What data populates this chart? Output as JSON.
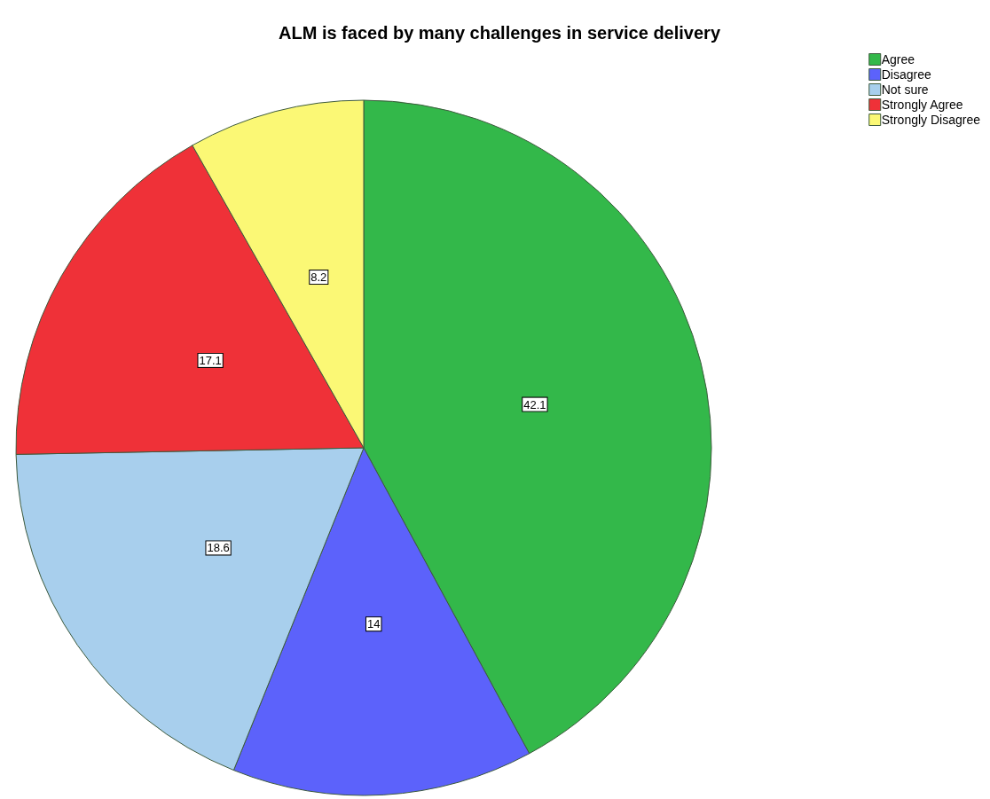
{
  "chart_data": {
    "type": "pie",
    "title": "ALM is faced by many challenges in service delivery",
    "categories": [
      "Agree",
      "Disagree",
      "Not sure",
      "Strongly Agree",
      "Strongly Disagree"
    ],
    "values": [
      42.1,
      14,
      18.6,
      17.1,
      8.2
    ],
    "colors": [
      "#33b84a",
      "#5c62fb",
      "#a8cfed",
      "#ef3138",
      "#fbf875"
    ],
    "data_labels": true,
    "legend": "top right"
  }
}
